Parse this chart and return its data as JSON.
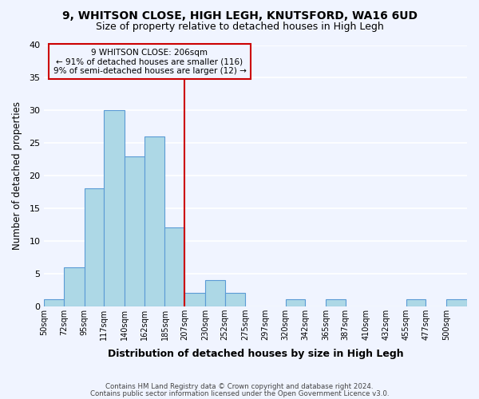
{
  "title": "9, WHITSON CLOSE, HIGH LEGH, KNUTSFORD, WA16 6UD",
  "subtitle": "Size of property relative to detached houses in High Legh",
  "xlabel": "Distribution of detached houses by size in High Legh",
  "ylabel": "Number of detached properties",
  "bar_color": "#add8e6",
  "bar_edge_color": "#5b9bd5",
  "background_color": "#f0f4ff",
  "grid_color": "#ffffff",
  "bin_edges": [
    50,
    72,
    95,
    117,
    140,
    162,
    185,
    207,
    230,
    252,
    275,
    297,
    320,
    342,
    365,
    387,
    410,
    432,
    455,
    477,
    500,
    523
  ],
  "counts": [
    1,
    6,
    18,
    30,
    23,
    26,
    12,
    2,
    4,
    2,
    0,
    0,
    1,
    0,
    1,
    0,
    0,
    0,
    1,
    0,
    1
  ],
  "tick_labels": [
    "50sqm",
    "72sqm",
    "95sqm",
    "117sqm",
    "140sqm",
    "162sqm",
    "185sqm",
    "207sqm",
    "230sqm",
    "252sqm",
    "275sqm",
    "297sqm",
    "320sqm",
    "342sqm",
    "365sqm",
    "387sqm",
    "410sqm",
    "432sqm",
    "455sqm",
    "477sqm",
    "500sqm"
  ],
  "tick_positions": [
    50,
    72,
    95,
    117,
    140,
    162,
    185,
    207,
    230,
    252,
    275,
    297,
    320,
    342,
    365,
    387,
    410,
    432,
    455,
    477,
    500
  ],
  "marker_x": 207,
  "marker_label_line1": "9 WHITSON CLOSE: 206sqm",
  "marker_label_line2": "← 91% of detached houses are smaller (116)",
  "marker_label_line3": "9% of semi-detached houses are larger (12) →",
  "annotation_box_edge_color": "#cc0000",
  "annotation_line_color": "#cc0000",
  "ylim": [
    0,
    40
  ],
  "yticks": [
    0,
    5,
    10,
    15,
    20,
    25,
    30,
    35,
    40
  ],
  "xlim": [
    50,
    523
  ],
  "footer_line1": "Contains HM Land Registry data © Crown copyright and database right 2024.",
  "footer_line2": "Contains public sector information licensed under the Open Government Licence v3.0."
}
